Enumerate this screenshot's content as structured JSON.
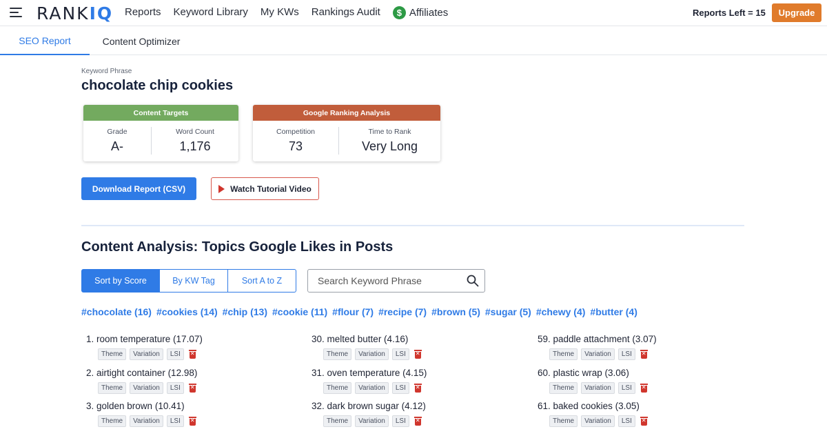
{
  "nav": {
    "logo_main": "RANK",
    "logo_accent": "IQ",
    "items": [
      "Reports",
      "Keyword Library",
      "My KWs",
      "Rankings Audit"
    ],
    "affiliates": "Affiliates",
    "affiliates_icon": "$",
    "reports_left": "Reports Left = 15",
    "upgrade": "Upgrade"
  },
  "tabs": {
    "active": "SEO Report",
    "other": "Content Optimizer"
  },
  "keyword": {
    "label": "Keyword Phrase",
    "phrase": "chocolate chip cookies"
  },
  "content_targets": {
    "title": "Content Targets",
    "grade_label": "Grade",
    "grade": "A-",
    "wordcount_label": "Word Count",
    "wordcount": "1,176",
    "color": "#73aa5f"
  },
  "ranking_analysis": {
    "title": "Google Ranking Analysis",
    "competition_label": "Competition",
    "competition": "73",
    "time_label": "Time to Rank",
    "time": "Very Long",
    "color": "#c15d3b"
  },
  "buttons": {
    "download": "Download Report (CSV)",
    "tutorial": "Watch Tutorial Video"
  },
  "section_title": "Content Analysis: Topics Google Likes in Posts",
  "sort": [
    "Sort by Score",
    "By KW Tag",
    "Sort A to Z"
  ],
  "search": {
    "placeholder": "Search Keyword Phrase"
  },
  "tags": [
    "#chocolate (16)",
    "#cookies (14)",
    "#chip (13)",
    "#cookie (11)",
    "#flour (7)",
    "#recipe (7)",
    "#brown (5)",
    "#sugar (5)",
    "#chewy (4)",
    "#butter (4)"
  ],
  "badge_labels": {
    "theme": "Theme",
    "variation": "Variation",
    "lsi": "LSI"
  },
  "columns": [
    [
      {
        "text": "1. room temperature (17.07)"
      },
      {
        "text": "2. airtight container (12.98)"
      },
      {
        "text": "3. golden brown (10.41)"
      }
    ],
    [
      {
        "text": "30. melted butter (4.16)"
      },
      {
        "text": "31. oven temperature (4.15)"
      },
      {
        "text": "32. dark brown sugar (4.12)"
      }
    ],
    [
      {
        "text": "59. paddle attachment (3.07)"
      },
      {
        "text": "60. plastic wrap (3.06)"
      },
      {
        "text": "61. baked cookies (3.05)"
      }
    ]
  ],
  "colors": {
    "accent": "#2f7be6",
    "upgrade": "#e07b2b",
    "delete": "#d0362d"
  }
}
